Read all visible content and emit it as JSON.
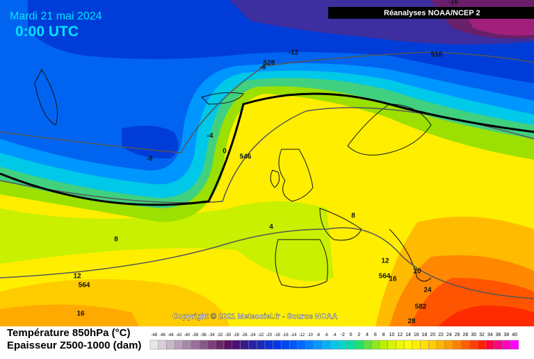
{
  "header": {
    "date": "Mardi 21 mai 2024",
    "time": "0:00 UTC",
    "source_badge": "Réanalyses NOAA/NCEP 2"
  },
  "copyright": "Copyright © 2021 Meteociel.fr - Source NOAA",
  "legend": {
    "title_temperature": "Température 850hPa (°C)",
    "title_thickness": "Epaisseur Z500-1000 (dam)",
    "scale": [
      -48,
      -46,
      -44,
      -42,
      -40,
      -38,
      -36,
      -34,
      -32,
      -30,
      -28,
      -26,
      -24,
      -22,
      -20,
      -18,
      -16,
      -14,
      -12,
      -10,
      -8,
      -6,
      -4,
      -2,
      0,
      2,
      4,
      6,
      8,
      10,
      12,
      14,
      16,
      18,
      20,
      22,
      24,
      26,
      28,
      30,
      32,
      34,
      36,
      38,
      40
    ]
  },
  "map": {
    "labels": [
      {
        "text": "-16"
      },
      {
        "text": "-12"
      },
      {
        "text": "-6"
      },
      {
        "text": "528"
      },
      {
        "text": "510"
      },
      {
        "text": "-4"
      },
      {
        "text": "-8"
      },
      {
        "text": "0"
      },
      {
        "text": "546"
      },
      {
        "text": "4"
      },
      {
        "text": "8"
      },
      {
        "text": "8"
      },
      {
        "text": "12"
      },
      {
        "text": "564"
      },
      {
        "text": "12"
      },
      {
        "text": "16"
      },
      {
        "text": "564"
      },
      {
        "text": "16"
      },
      {
        "text": "20"
      },
      {
        "text": "24"
      },
      {
        "text": "582"
      },
      {
        "text": "28"
      }
    ]
  }
}
